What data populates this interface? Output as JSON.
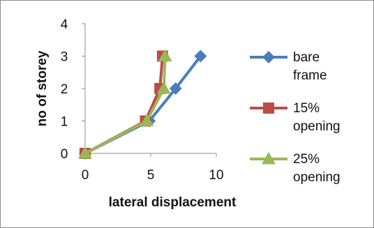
{
  "chart_data": {
    "type": "line",
    "title": "",
    "xlabel": "lateral displacement",
    "ylabel": "no of storey",
    "xlim": [
      0,
      10
    ],
    "ylim": [
      0,
      4
    ],
    "xticks": [
      "0",
      "5",
      "10"
    ],
    "yticks": [
      "0",
      "1",
      "2",
      "3",
      "4"
    ],
    "grid": false,
    "legend_position": "right",
    "series": [
      {
        "name": "bare frame",
        "legend_lines": [
          "bare",
          "frame"
        ],
        "marker": "diamond",
        "color": "#4a7ebb",
        "x": [
          0,
          4.9,
          6.9,
          8.8
        ],
        "y": [
          0,
          1,
          2,
          3
        ]
      },
      {
        "name": "15% opening",
        "legend_lines": [
          "15%",
          "opening"
        ],
        "marker": "square",
        "color": "#be4b48",
        "x": [
          0,
          4.6,
          5.7,
          5.9
        ],
        "y": [
          0,
          1,
          2,
          3
        ]
      },
      {
        "name": "25% opening",
        "legend_lines": [
          "25%",
          "opening"
        ],
        "marker": "triangle",
        "color": "#98b954",
        "x": [
          0,
          4.7,
          6.0,
          6.1
        ],
        "y": [
          0,
          1,
          2,
          3
        ]
      }
    ]
  }
}
